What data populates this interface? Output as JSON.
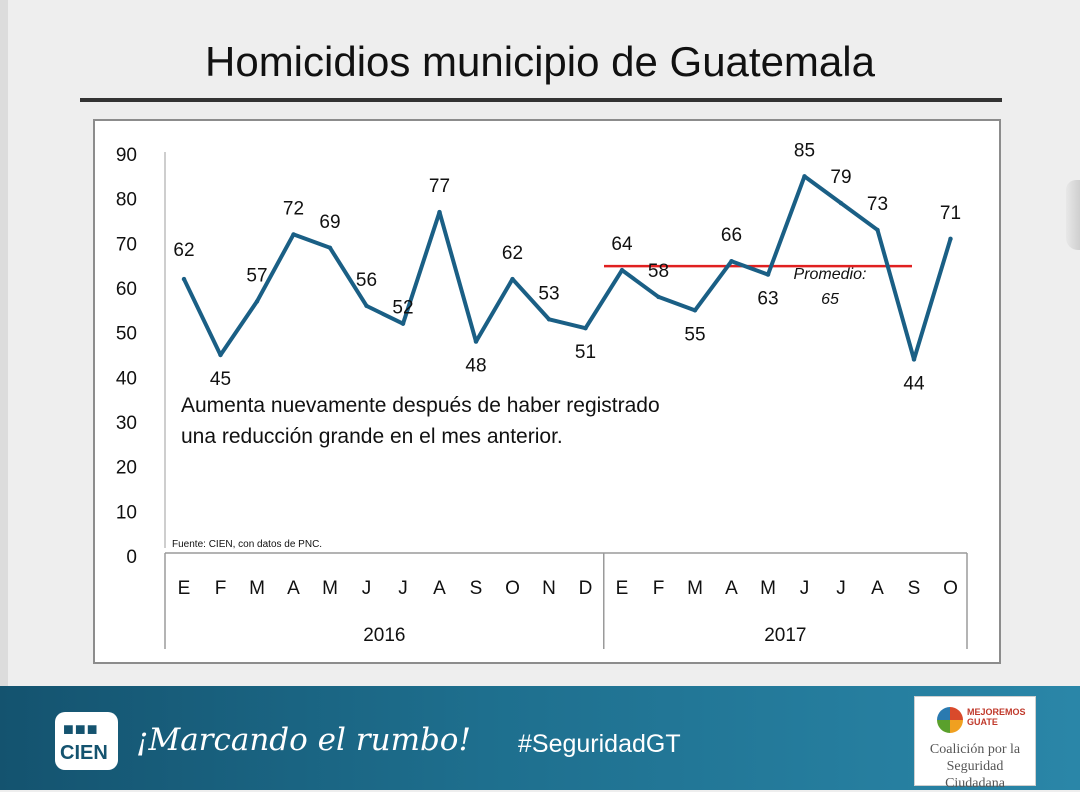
{
  "slide": {
    "title": "Homicidios municipio de Guatemala",
    "annotation": "Aumenta nuevamente después de haber registrado una reducción grande en el mes anterior.",
    "source": "Fuente: CIEN, con datos de PNC."
  },
  "chart_data": {
    "type": "line",
    "title": "Homicidios municipio de Guatemala",
    "categories": [
      "E",
      "F",
      "M",
      "A",
      "M",
      "J",
      "J",
      "A",
      "S",
      "O",
      "N",
      "D",
      "E",
      "F",
      "M",
      "A",
      "M",
      "J",
      "J",
      "A",
      "S",
      "O"
    ],
    "years": [
      {
        "label": "2016",
        "start": 0,
        "end": 11
      },
      {
        "label": "2017",
        "start": 12,
        "end": 21
      }
    ],
    "series": [
      {
        "name": "Homicidios",
        "color": "#1a5f85",
        "values": [
          62,
          45,
          57,
          72,
          69,
          56,
          52,
          77,
          48,
          62,
          53,
          51,
          64,
          58,
          55,
          66,
          63,
          85,
          79,
          73,
          44,
          71
        ]
      }
    ],
    "average": {
      "label_line1": "Promedio:",
      "label_line2": "65",
      "value": 65,
      "start": 12,
      "end": 20,
      "color": "#e02020"
    },
    "y_ticks": [
      0,
      10,
      20,
      30,
      40,
      50,
      60,
      70,
      80,
      90
    ],
    "ylim": [
      0,
      90
    ],
    "xlabel": "",
    "ylabel": "",
    "grid": false
  },
  "footer": {
    "logo_text": "CIEN",
    "slogan": "¡Marcando el rumbo!",
    "hashtag": "#SeguridadGT",
    "partner_brand_line1": "MEJOREMOS",
    "partner_brand_line2": "GUATE",
    "partner_line1": "Coalición por la",
    "partner_line2": "Seguridad Ciudadana"
  }
}
